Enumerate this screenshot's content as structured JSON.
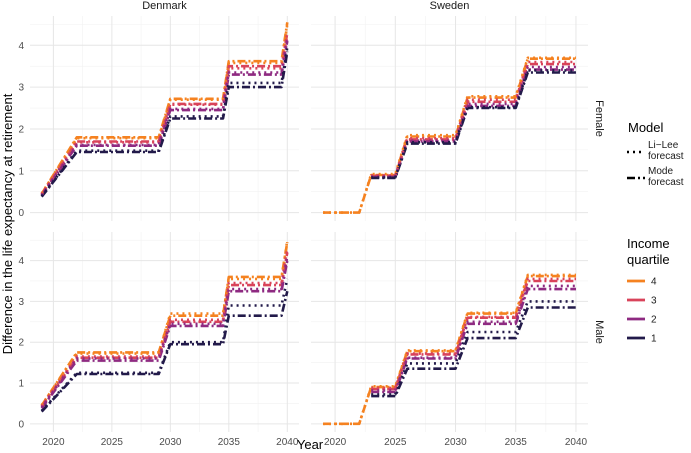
{
  "chart_data": {
    "type": "line",
    "xlabel": "Year",
    "ylabel": "Difference in the life expectancy at retirement",
    "xlim": [
      2018,
      2041
    ],
    "ylim": [
      -0.2,
      4.7
    ],
    "x_ticks": [
      2020,
      2025,
      2030,
      2035,
      2040
    ],
    "y_ticks": [
      0,
      1,
      2,
      3,
      4
    ],
    "facet_cols": [
      "Denmark",
      "Sweden"
    ],
    "facet_rows": [
      "Female",
      "Male"
    ],
    "legend": {
      "position": "right",
      "model_title": "Model",
      "models": [
        {
          "label1": "Li−Lee",
          "label2": "forecast",
          "dash": "2,4"
        },
        {
          "label1": "Mode",
          "label2": "forecast",
          "dash": "8,3,2,3"
        }
      ],
      "income_title1": "Income",
      "income_title2": "quartile",
      "quartiles": [
        {
          "label": "4",
          "color": "#f58220"
        },
        {
          "label": "3",
          "color": "#d9435a"
        },
        {
          "label": "2",
          "color": "#8e2a81"
        },
        {
          "label": "1",
          "color": "#221a4a"
        }
      ]
    },
    "series": [
      {
        "facet": "Denmark|Female",
        "model": "Mode forecast",
        "quartile": "4",
        "x": [
          2019,
          2022,
          2029,
          2030,
          2034.5,
          2035,
          2039.5,
          2040
        ],
        "y": [
          0.45,
          1.8,
          1.8,
          2.72,
          2.72,
          3.62,
          3.62,
          4.55
        ]
      },
      {
        "facet": "Denmark|Female",
        "model": "Mode forecast",
        "quartile": "3",
        "x": [
          2019,
          2022,
          2029,
          2030,
          2034.5,
          2035,
          2039.5,
          2040
        ],
        "y": [
          0.43,
          1.7,
          1.7,
          2.6,
          2.6,
          3.5,
          3.5,
          4.3
        ]
      },
      {
        "facet": "Denmark|Female",
        "model": "Mode forecast",
        "quartile": "2",
        "x": [
          2019,
          2022,
          2029,
          2030,
          2034.5,
          2035,
          2039.5,
          2040
        ],
        "y": [
          0.41,
          1.6,
          1.6,
          2.45,
          2.45,
          3.3,
          3.3,
          4.1
        ]
      },
      {
        "facet": "Denmark|Female",
        "model": "Mode forecast",
        "quartile": "1",
        "x": [
          2019,
          2022,
          2029,
          2030,
          2034.5,
          2035,
          2039.5,
          2040
        ],
        "y": [
          0.38,
          1.45,
          1.45,
          2.25,
          2.25,
          3.0,
          3.0,
          3.85
        ]
      },
      {
        "facet": "Denmark|Female",
        "model": "Li-Lee forecast",
        "quartile": "4",
        "x": [
          2019,
          2022,
          2029,
          2030,
          2034.5,
          2035,
          2039.5,
          2040
        ],
        "y": [
          0.46,
          1.78,
          1.78,
          2.7,
          2.7,
          3.58,
          3.58,
          4.5
        ]
      },
      {
        "facet": "Denmark|Female",
        "model": "Li-Lee forecast",
        "quartile": "3",
        "x": [
          2019,
          2022,
          2029,
          2030,
          2034.5,
          2035,
          2039.5,
          2040
        ],
        "y": [
          0.44,
          1.68,
          1.68,
          2.58,
          2.58,
          3.45,
          3.45,
          4.25
        ]
      },
      {
        "facet": "Denmark|Female",
        "model": "Li-Lee forecast",
        "quartile": "2",
        "x": [
          2019,
          2022,
          2029,
          2030,
          2034.5,
          2035,
          2039.5,
          2040
        ],
        "y": [
          0.42,
          1.62,
          1.62,
          2.48,
          2.48,
          3.35,
          3.35,
          4.15
        ]
      },
      {
        "facet": "Denmark|Female",
        "model": "Li-Lee forecast",
        "quartile": "1",
        "x": [
          2019,
          2022,
          2029,
          2030,
          2034.5,
          2035,
          2039.5,
          2040
        ],
        "y": [
          0.39,
          1.48,
          1.48,
          2.3,
          2.3,
          3.1,
          3.1,
          3.95
        ]
      },
      {
        "facet": "Sweden|Female",
        "model": "Mode forecast",
        "quartile": "4",
        "x": [
          2019,
          2022,
          2023,
          2025,
          2026,
          2030,
          2031,
          2035,
          2036,
          2040
        ],
        "y": [
          0,
          0,
          0.9,
          0.9,
          1.82,
          1.82,
          2.75,
          2.75,
          3.68,
          3.68
        ]
      },
      {
        "facet": "Sweden|Female",
        "model": "Mode forecast",
        "quartile": "3",
        "x": [
          2023,
          2025,
          2026,
          2030,
          2031,
          2035,
          2036,
          2040
        ],
        "y": [
          0.88,
          0.88,
          1.75,
          1.75,
          2.65,
          2.65,
          3.55,
          3.55
        ]
      },
      {
        "facet": "Sweden|Female",
        "model": "Mode forecast",
        "quartile": "2",
        "x": [
          2023,
          2025,
          2026,
          2030,
          2031,
          2035,
          2036,
          2040
        ],
        "y": [
          0.85,
          0.85,
          1.7,
          1.7,
          2.55,
          2.55,
          3.42,
          3.42
        ]
      },
      {
        "facet": "Sweden|Female",
        "model": "Mode forecast",
        "quartile": "1",
        "x": [
          2023,
          2025,
          2026,
          2030,
          2031,
          2035,
          2036,
          2040
        ],
        "y": [
          0.83,
          0.83,
          1.65,
          1.65,
          2.5,
          2.5,
          3.35,
          3.35
        ]
      },
      {
        "facet": "Sweden|Female",
        "model": "Li-Lee forecast",
        "quartile": "4",
        "x": [
          2019,
          2022,
          2023,
          2025,
          2026,
          2030,
          2031,
          2035,
          2036,
          2040
        ],
        "y": [
          0,
          0,
          0.92,
          0.92,
          1.85,
          1.85,
          2.78,
          2.78,
          3.7,
          3.7
        ]
      },
      {
        "facet": "Sweden|Female",
        "model": "Li-Lee forecast",
        "quartile": "3",
        "x": [
          2023,
          2025,
          2026,
          2030,
          2031,
          2035,
          2036,
          2040
        ],
        "y": [
          0.89,
          0.89,
          1.78,
          1.78,
          2.7,
          2.7,
          3.6,
          3.6
        ]
      },
      {
        "facet": "Sweden|Female",
        "model": "Li-Lee forecast",
        "quartile": "2",
        "x": [
          2023,
          2025,
          2026,
          2030,
          2031,
          2035,
          2036,
          2040
        ],
        "y": [
          0.86,
          0.86,
          1.72,
          1.72,
          2.6,
          2.6,
          3.48,
          3.48
        ]
      },
      {
        "facet": "Sweden|Female",
        "model": "Li-Lee forecast",
        "quartile": "1",
        "x": [
          2023,
          2025,
          2026,
          2030,
          2031,
          2035,
          2036,
          2040
        ],
        "y": [
          0.84,
          0.84,
          1.68,
          1.68,
          2.52,
          2.52,
          3.4,
          3.4
        ]
      },
      {
        "facet": "Denmark|Male",
        "model": "Mode forecast",
        "quartile": "4",
        "x": [
          2019,
          2022,
          2029,
          2030,
          2034.5,
          2035,
          2039.5,
          2040
        ],
        "y": [
          0.45,
          1.75,
          1.75,
          2.65,
          2.65,
          3.6,
          3.6,
          4.45
        ]
      },
      {
        "facet": "Denmark|Male",
        "model": "Mode forecast",
        "quartile": "3",
        "x": [
          2019,
          2022,
          2029,
          2030,
          2034.5,
          2035,
          2039.5,
          2040
        ],
        "y": [
          0.42,
          1.62,
          1.62,
          2.5,
          2.5,
          3.4,
          3.4,
          4.2
        ]
      },
      {
        "facet": "Denmark|Male",
        "model": "Mode forecast",
        "quartile": "2",
        "x": [
          2019,
          2022,
          2029,
          2030,
          2034.5,
          2035,
          2039.5,
          2040
        ],
        "y": [
          0.38,
          1.55,
          1.55,
          2.4,
          2.4,
          3.25,
          3.25,
          4.0
        ]
      },
      {
        "facet": "Denmark|Male",
        "model": "Mode forecast",
        "quartile": "1",
        "x": [
          2019,
          2022,
          2029,
          2030,
          2034.5,
          2035,
          2039.5,
          2040
        ],
        "y": [
          0.3,
          1.22,
          1.22,
          1.95,
          1.95,
          2.65,
          2.65,
          3.25
        ]
      },
      {
        "facet": "Denmark|Male",
        "model": "Li-Lee forecast",
        "quartile": "4",
        "x": [
          2019,
          2022,
          2029,
          2030,
          2034.5,
          2035,
          2039.5,
          2040
        ],
        "y": [
          0.46,
          1.72,
          1.72,
          2.7,
          2.7,
          3.55,
          3.55,
          4.5
        ]
      },
      {
        "facet": "Denmark|Male",
        "model": "Li-Lee forecast",
        "quartile": "3",
        "x": [
          2019,
          2022,
          2029,
          2030,
          2034.5,
          2035,
          2039.5,
          2040
        ],
        "y": [
          0.43,
          1.65,
          1.65,
          2.55,
          2.55,
          3.45,
          3.45,
          4.3
        ]
      },
      {
        "facet": "Denmark|Male",
        "model": "Li-Lee forecast",
        "quartile": "2",
        "x": [
          2019,
          2022,
          2029,
          2030,
          2034.5,
          2035,
          2039.5,
          2040
        ],
        "y": [
          0.4,
          1.6,
          1.6,
          2.45,
          2.45,
          3.3,
          3.3,
          4.1
        ]
      },
      {
        "facet": "Denmark|Male",
        "model": "Li-Lee forecast",
        "quartile": "1",
        "x": [
          2019,
          2022,
          2029,
          2030,
          2034.5,
          2035,
          2039.5,
          2040
        ],
        "y": [
          0.32,
          1.25,
          1.25,
          2.0,
          2.0,
          2.9,
          2.9,
          3.55
        ]
      },
      {
        "facet": "Sweden|Male",
        "model": "Mode forecast",
        "quartile": "4",
        "x": [
          2019,
          2022,
          2023,
          2025,
          2026,
          2030,
          2031,
          2035,
          2036,
          2040
        ],
        "y": [
          0,
          0,
          0.9,
          0.9,
          1.78,
          1.78,
          2.7,
          2.7,
          3.62,
          3.62
        ]
      },
      {
        "facet": "Sweden|Male",
        "model": "Mode forecast",
        "quartile": "3",
        "x": [
          2023,
          2025,
          2026,
          2030,
          2031,
          2035,
          2036,
          2040
        ],
        "y": [
          0.85,
          0.85,
          1.7,
          1.7,
          2.6,
          2.6,
          3.5,
          3.5
        ]
      },
      {
        "facet": "Sweden|Male",
        "model": "Mode forecast",
        "quartile": "2",
        "x": [
          2023,
          2025,
          2026,
          2030,
          2031,
          2035,
          2036,
          2040
        ],
        "y": [
          0.78,
          0.78,
          1.6,
          1.6,
          2.45,
          2.45,
          3.3,
          3.3
        ]
      },
      {
        "facet": "Sweden|Male",
        "model": "Mode forecast",
        "quartile": "1",
        "x": [
          2023,
          2025,
          2026,
          2030,
          2031,
          2035,
          2036,
          2040
        ],
        "y": [
          0.68,
          0.68,
          1.35,
          1.35,
          2.1,
          2.1,
          2.85,
          2.85
        ]
      },
      {
        "facet": "Sweden|Male",
        "model": "Li-Lee forecast",
        "quartile": "4",
        "x": [
          2019,
          2022,
          2023,
          2025,
          2026,
          2030,
          2031,
          2035,
          2036,
          2040
        ],
        "y": [
          0,
          0,
          0.92,
          0.92,
          1.8,
          1.8,
          2.72,
          2.72,
          3.65,
          3.65
        ]
      },
      {
        "facet": "Sweden|Male",
        "model": "Li-Lee forecast",
        "quartile": "3",
        "x": [
          2023,
          2025,
          2026,
          2030,
          2031,
          2035,
          2036,
          2040
        ],
        "y": [
          0.88,
          0.88,
          1.72,
          1.72,
          2.62,
          2.62,
          3.55,
          3.55
        ]
      },
      {
        "facet": "Sweden|Male",
        "model": "Li-Lee forecast",
        "quartile": "2",
        "x": [
          2023,
          2025,
          2026,
          2030,
          2031,
          2035,
          2036,
          2040
        ],
        "y": [
          0.82,
          0.82,
          1.62,
          1.62,
          2.5,
          2.5,
          3.38,
          3.38
        ]
      },
      {
        "facet": "Sweden|Male",
        "model": "Li-Lee forecast",
        "quartile": "1",
        "x": [
          2023,
          2025,
          2026,
          2030,
          2031,
          2035,
          2036,
          2040
        ],
        "y": [
          0.72,
          0.72,
          1.48,
          1.48,
          2.25,
          2.25,
          3.0,
          3.0
        ]
      }
    ]
  }
}
